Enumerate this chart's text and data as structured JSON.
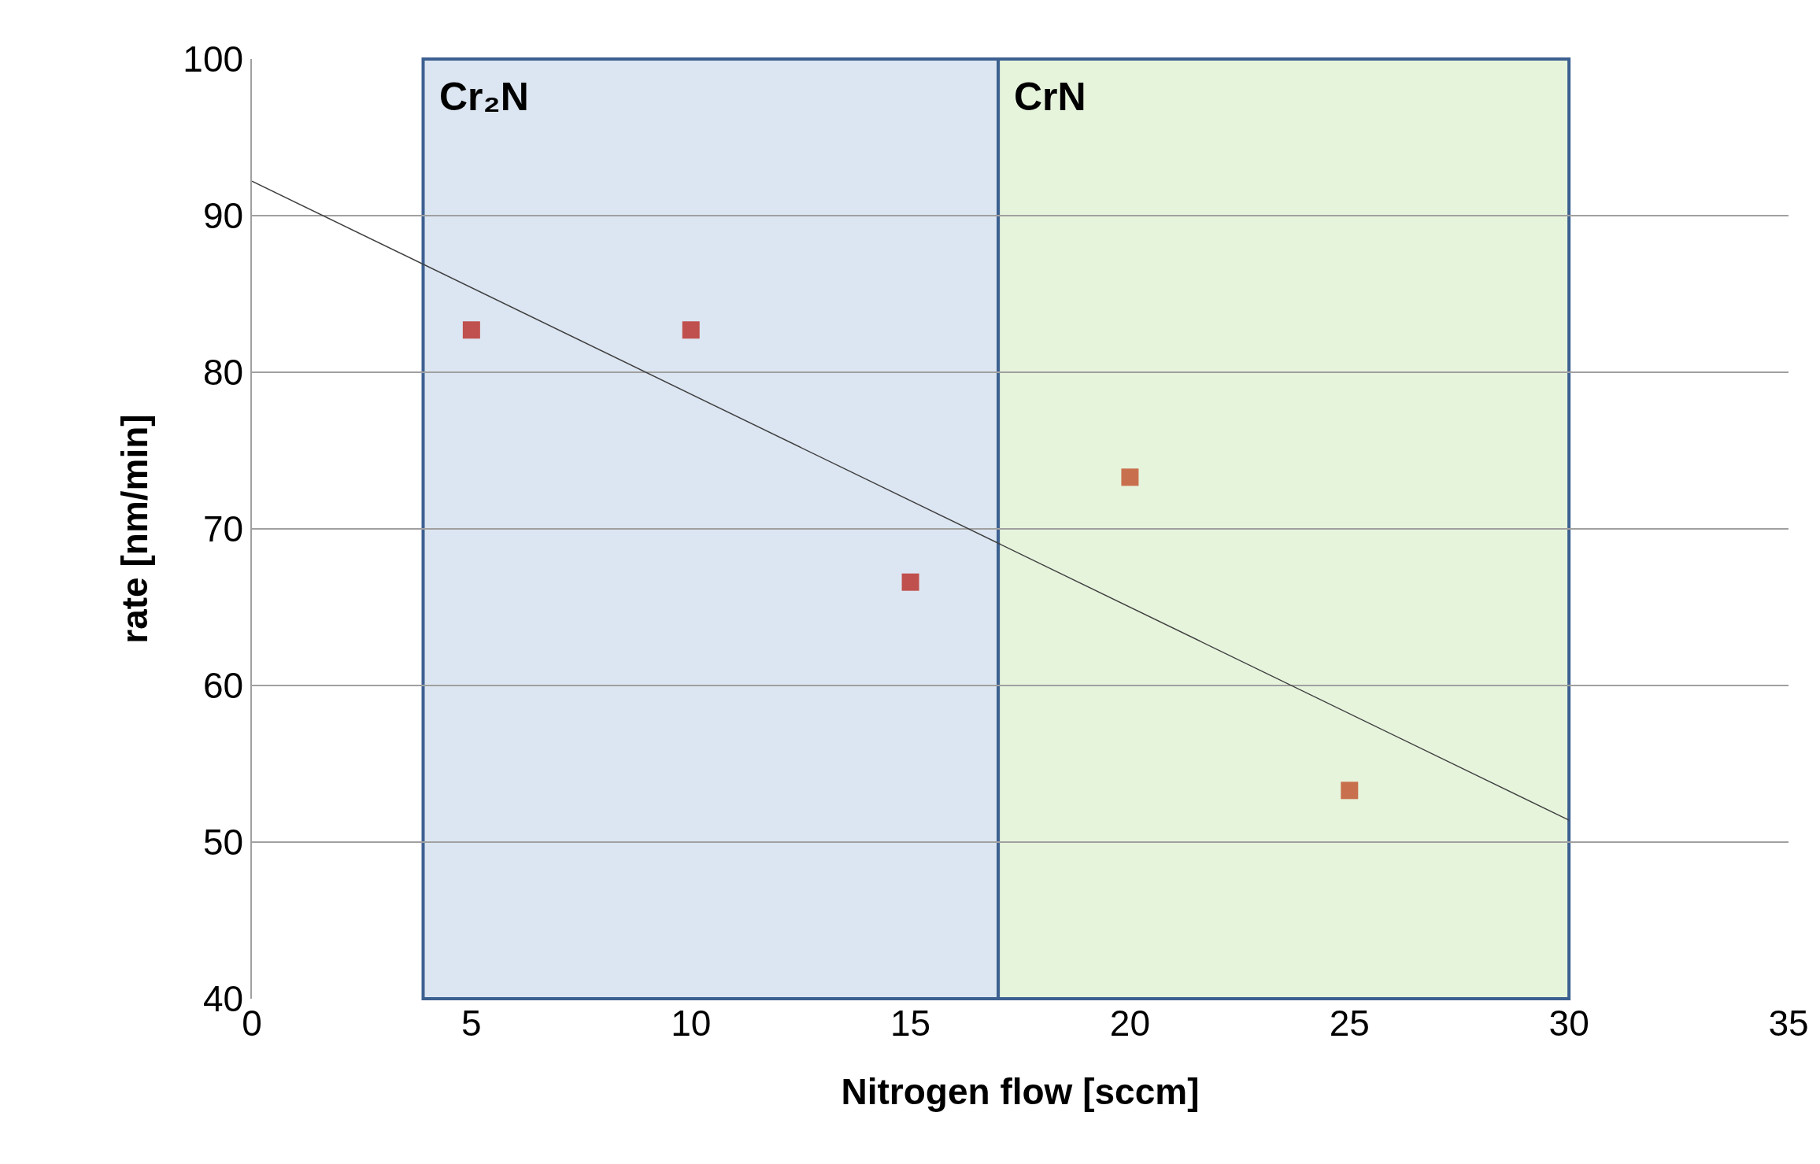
{
  "chart_data": {
    "type": "scatter",
    "xlabel": "Nitrogen flow [sccm]",
    "ylabel": "rate [nm/min]",
    "xlim": [
      0,
      35
    ],
    "xticks": [
      0,
      5,
      10,
      15,
      20,
      25,
      30,
      35
    ],
    "ylim": [
      40,
      100
    ],
    "yticks": [
      40,
      50,
      60,
      70,
      80,
      90,
      100
    ],
    "grid": "y",
    "marker": "square",
    "series": [
      {
        "x": [
          5,
          10,
          15,
          20,
          25
        ],
        "values": [
          82.7,
          82.7,
          66.6,
          73.3,
          53.3
        ],
        "colors": [
          "#c0504d",
          "#c0504d",
          "#c0504d",
          "#c8704d",
          "#c8704d"
        ]
      },
      {
        "type": "line",
        "x": [
          0,
          30
        ],
        "values": [
          92.2,
          51.4
        ],
        "color": "#404040",
        "line_style": "solid",
        "marker": "none"
      }
    ],
    "bands": [
      {
        "axis": "x",
        "from": 3.9,
        "to": 17,
        "label": "Cr₂N",
        "color": "#dce6f2"
      },
      {
        "axis": "x",
        "from": 17,
        "to": 30,
        "label": "CrN",
        "color": "#e6f4dc"
      }
    ]
  }
}
